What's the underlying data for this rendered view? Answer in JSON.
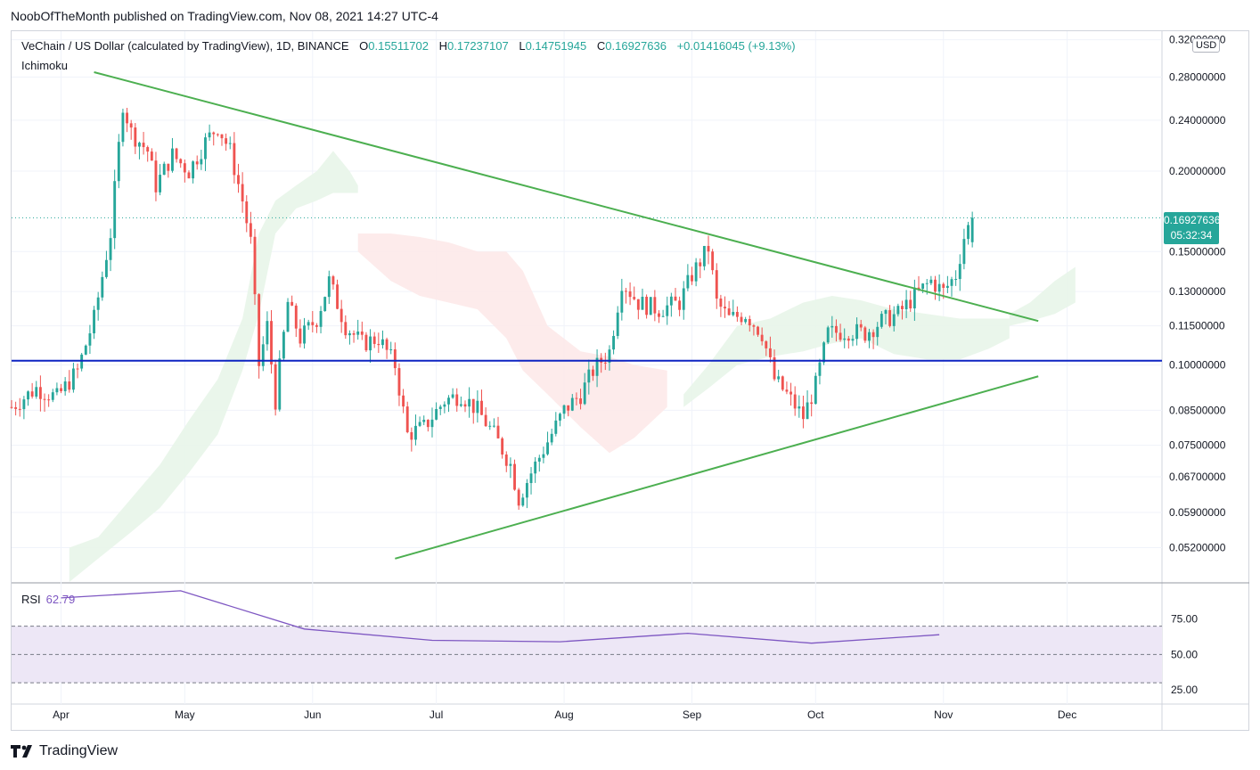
{
  "header": {
    "publish_line": "NoobOfTheMonth published on TradingView.com, Nov 08, 2021 14:27 UTC-4"
  },
  "legend": {
    "symbol": "VeChain / US Dollar (calculated by TradingView), 1D, BINANCE",
    "open_label": "O",
    "open": "0.15511702",
    "high_label": "H",
    "high": "0.17237107",
    "low_label": "L",
    "low": "0.14751945",
    "close_label": "C",
    "close": "0.16927636",
    "change": "+0.01416045 (+9.13%)",
    "indicator": "Ichimoku"
  },
  "currency": "USD",
  "last_price": {
    "value": "0.16927636",
    "countdown": "05:32:34"
  },
  "rsi": {
    "label": "RSI",
    "value": "62.79"
  },
  "brand": {
    "name": "TradingView"
  },
  "colors": {
    "up": "#26a69a",
    "down": "#ef5350",
    "trendline": "#4caf50",
    "support": "#0d24c2",
    "rsi": "#7e57c2",
    "rsi_band": "#ede7f6",
    "cloud_bull": "#e8f5e9",
    "cloud_bear": "#fde9e9"
  },
  "chart_data": {
    "type": "candlestick",
    "title": "VeChain / US Dollar, 1D",
    "y_scale": "log",
    "ylim": [
      0.046,
      0.33
    ],
    "x_range": [
      "2021-03-20",
      "2021-12-24"
    ],
    "y_ticks": [
      "0.32000000",
      "0.28000000",
      "0.24000000",
      "0.20000000",
      "0.15000000",
      "0.13000000",
      "0.11500000",
      "0.10000000",
      "0.08500000",
      "0.07500000",
      "0.06700000",
      "0.05900000",
      "0.05200000"
    ],
    "x_ticks": [
      {
        "label": "Apr",
        "date": "2021-04-01"
      },
      {
        "label": "May",
        "date": "2021-05-01"
      },
      {
        "label": "Jun",
        "date": "2021-06-01"
      },
      {
        "label": "Jul",
        "date": "2021-07-01"
      },
      {
        "label": "Aug",
        "date": "2021-08-01"
      },
      {
        "label": "Sep",
        "date": "2021-09-01"
      },
      {
        "label": "Oct",
        "date": "2021-10-01"
      },
      {
        "label": "Nov",
        "date": "2021-11-01"
      },
      {
        "label": "Dec",
        "date": "2021-12-01"
      }
    ],
    "last_price": 0.16927636,
    "price_path": [
      [
        "2021-03-20",
        0.086
      ],
      [
        "2021-03-26",
        0.092
      ],
      [
        "2021-03-31",
        0.089
      ],
      [
        "2021-04-05",
        0.098
      ],
      [
        "2021-04-09",
        0.118
      ],
      [
        "2021-04-13",
        0.16
      ],
      [
        "2021-04-16",
        0.255
      ],
      [
        "2021-04-18",
        0.23
      ],
      [
        "2021-04-22",
        0.215
      ],
      [
        "2021-04-24",
        0.19
      ],
      [
        "2021-04-28",
        0.212
      ],
      [
        "2021-05-02",
        0.2
      ],
      [
        "2021-05-06",
        0.222
      ],
      [
        "2021-05-09",
        0.235
      ],
      [
        "2021-05-12",
        0.215
      ],
      [
        "2021-05-15",
        0.18
      ],
      [
        "2021-05-17",
        0.155
      ],
      [
        "2021-05-19",
        0.1
      ],
      [
        "2021-05-21",
        0.115
      ],
      [
        "2021-05-23",
        0.088
      ],
      [
        "2021-05-26",
        0.125
      ],
      [
        "2021-05-29",
        0.11
      ],
      [
        "2021-06-02",
        0.118
      ],
      [
        "2021-06-05",
        0.135
      ],
      [
        "2021-06-09",
        0.115
      ],
      [
        "2021-06-13",
        0.108
      ],
      [
        "2021-06-17",
        0.11
      ],
      [
        "2021-06-21",
        0.1
      ],
      [
        "2021-06-24",
        0.078
      ],
      [
        "2021-06-28",
        0.08
      ],
      [
        "2021-07-03",
        0.088
      ],
      [
        "2021-07-07",
        0.09
      ],
      [
        "2021-07-11",
        0.085
      ],
      [
        "2021-07-15",
        0.078
      ],
      [
        "2021-07-19",
        0.07
      ],
      [
        "2021-07-21",
        0.062
      ],
      [
        "2021-07-24",
        0.068
      ],
      [
        "2021-07-28",
        0.076
      ],
      [
        "2021-08-01",
        0.085
      ],
      [
        "2021-08-05",
        0.09
      ],
      [
        "2021-08-08",
        0.098
      ],
      [
        "2021-08-12",
        0.105
      ],
      [
        "2021-08-15",
        0.135
      ],
      [
        "2021-08-19",
        0.125
      ],
      [
        "2021-08-24",
        0.122
      ],
      [
        "2021-08-29",
        0.125
      ],
      [
        "2021-09-01",
        0.138
      ],
      [
        "2021-09-05",
        0.152
      ],
      [
        "2021-09-07",
        0.125
      ],
      [
        "2021-09-10",
        0.118
      ],
      [
        "2021-09-14",
        0.12
      ],
      [
        "2021-09-18",
        0.112
      ],
      [
        "2021-09-21",
        0.095
      ],
      [
        "2021-09-24",
        0.09
      ],
      [
        "2021-09-28",
        0.083
      ],
      [
        "2021-10-01",
        0.093
      ],
      [
        "2021-10-04",
        0.112
      ],
      [
        "2021-10-09",
        0.113
      ],
      [
        "2021-10-13",
        0.112
      ],
      [
        "2021-10-17",
        0.117
      ],
      [
        "2021-10-21",
        0.12
      ],
      [
        "2021-10-25",
        0.128
      ],
      [
        "2021-10-29",
        0.135
      ],
      [
        "2021-11-01",
        0.13
      ],
      [
        "2021-11-04",
        0.138
      ],
      [
        "2021-11-06",
        0.158
      ],
      [
        "2021-11-08",
        0.16927636
      ]
    ],
    "cloud_upper": [
      [
        "2021-04-03",
        0.052
      ],
      [
        "2021-04-10",
        0.054
      ],
      [
        "2021-04-18",
        0.062
      ],
      [
        "2021-04-25",
        0.07
      ],
      [
        "2021-05-02",
        0.082
      ],
      [
        "2021-05-09",
        0.095
      ],
      [
        "2021-05-15",
        0.118
      ],
      [
        "2021-05-19",
        0.16
      ],
      [
        "2021-05-23",
        0.18
      ],
      [
        "2021-05-28",
        0.19
      ],
      [
        "2021-06-02",
        0.2
      ],
      [
        "2021-06-06",
        0.215
      ],
      [
        "2021-06-10",
        0.2
      ],
      [
        "2021-06-12",
        0.19
      ]
    ],
    "cloud_lower": [
      [
        "2021-04-03",
        0.046
      ],
      [
        "2021-04-10",
        0.05
      ],
      [
        "2021-04-18",
        0.055
      ],
      [
        "2021-04-25",
        0.06
      ],
      [
        "2021-05-02",
        0.068
      ],
      [
        "2021-05-09",
        0.078
      ],
      [
        "2021-05-15",
        0.098
      ],
      [
        "2021-05-19",
        0.12
      ],
      [
        "2021-05-23",
        0.16
      ],
      [
        "2021-05-28",
        0.175
      ],
      [
        "2021-06-02",
        0.18
      ],
      [
        "2021-06-06",
        0.185
      ],
      [
        "2021-06-10",
        0.185
      ],
      [
        "2021-06-12",
        0.185
      ]
    ],
    "cloud_bear_upper": [
      [
        "2021-06-12",
        0.16
      ],
      [
        "2021-06-20",
        0.16
      ],
      [
        "2021-06-27",
        0.158
      ],
      [
        "2021-07-04",
        0.155
      ],
      [
        "2021-07-11",
        0.15
      ],
      [
        "2021-07-18",
        0.15
      ],
      [
        "2021-07-22",
        0.14
      ],
      [
        "2021-07-28",
        0.115
      ],
      [
        "2021-08-05",
        0.105
      ],
      [
        "2021-08-12",
        0.103
      ],
      [
        "2021-08-18",
        0.1
      ],
      [
        "2021-08-26",
        0.098
      ]
    ],
    "cloud_bear_lower": [
      [
        "2021-06-12",
        0.15
      ],
      [
        "2021-06-20",
        0.135
      ],
      [
        "2021-06-27",
        0.128
      ],
      [
        "2021-07-04",
        0.125
      ],
      [
        "2021-07-11",
        0.122
      ],
      [
        "2021-07-18",
        0.11
      ],
      [
        "2021-07-22",
        0.098
      ],
      [
        "2021-07-28",
        0.09
      ],
      [
        "2021-08-05",
        0.08
      ],
      [
        "2021-08-12",
        0.073
      ],
      [
        "2021-08-18",
        0.077
      ],
      [
        "2021-08-26",
        0.086
      ]
    ],
    "cloud2_upper": [
      [
        "2021-08-30",
        0.09
      ],
      [
        "2021-09-05",
        0.1
      ],
      [
        "2021-09-12",
        0.115
      ],
      [
        "2021-09-20",
        0.118
      ],
      [
        "2021-09-28",
        0.125
      ],
      [
        "2021-10-05",
        0.128
      ],
      [
        "2021-10-12",
        0.126
      ],
      [
        "2021-10-20",
        0.122
      ],
      [
        "2021-10-28",
        0.12
      ],
      [
        "2021-11-05",
        0.118
      ],
      [
        "2021-11-12",
        0.118
      ],
      [
        "2021-11-17",
        0.118
      ]
    ],
    "cloud2_lower": [
      [
        "2021-08-30",
        0.086
      ],
      [
        "2021-09-05",
        0.092
      ],
      [
        "2021-09-12",
        0.1
      ],
      [
        "2021-09-20",
        0.103
      ],
      [
        "2021-09-28",
        0.105
      ],
      [
        "2021-10-05",
        0.108
      ],
      [
        "2021-10-12",
        0.11
      ],
      [
        "2021-10-20",
        0.104
      ],
      [
        "2021-10-28",
        0.102
      ],
      [
        "2021-11-05",
        0.102
      ],
      [
        "2021-11-12",
        0.106
      ],
      [
        "2021-11-17",
        0.11
      ]
    ],
    "cloud3_upper": [
      [
        "2021-11-17",
        0.12
      ],
      [
        "2021-11-22",
        0.125
      ],
      [
        "2021-11-28",
        0.135
      ],
      [
        "2021-12-03",
        0.142
      ]
    ],
    "cloud3_lower": [
      [
        "2021-11-17",
        0.115
      ],
      [
        "2021-11-22",
        0.117
      ],
      [
        "2021-11-28",
        0.12
      ],
      [
        "2021-12-03",
        0.125
      ]
    ],
    "trendlines": [
      {
        "name": "upper-resistance",
        "from": [
          "2021-04-09",
          0.285
        ],
        "to": [
          "2021-11-24",
          0.117
        ]
      },
      {
        "name": "lower-support",
        "from": [
          "2021-06-21",
          0.05
        ],
        "to": [
          "2021-11-24",
          0.096
        ]
      },
      {
        "name": "horizontal-support",
        "from": [
          "2021-03-20",
          0.1015
        ],
        "to": [
          "2021-12-24",
          0.1015
        ]
      }
    ],
    "rsi": {
      "ylim": [
        15,
        100
      ],
      "ticks": [
        "75.00",
        "50.00",
        "25.00"
      ],
      "band": [
        30,
        70
      ],
      "points": [
        [
          "2021-04-01",
          90
        ],
        [
          "2021-04-30",
          95
        ],
        [
          "2021-05-30",
          68
        ],
        [
          "2021-06-30",
          60
        ],
        [
          "2021-07-31",
          59
        ],
        [
          "2021-08-31",
          65
        ],
        [
          "2021-09-30",
          58
        ],
        [
          "2021-10-31",
          64
        ]
      ]
    }
  }
}
